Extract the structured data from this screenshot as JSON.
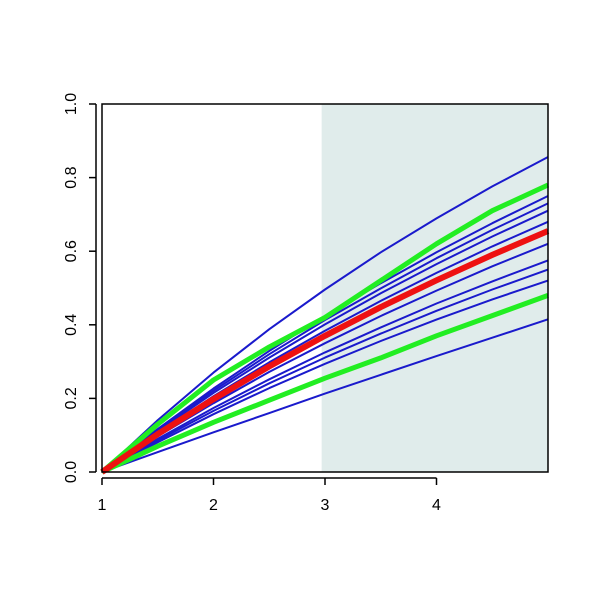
{
  "chart_data": {
    "type": "line",
    "x": [
      1,
      1.5,
      2,
      2.5,
      3,
      3.5,
      4,
      4.5,
      5
    ],
    "series": [
      {
        "color": "#1a1acc",
        "line_width": 2,
        "values": [
          0,
          0.141,
          0.27,
          0.388,
          0.496,
          0.597,
          0.689,
          0.776,
          0.856
        ]
      },
      {
        "color": "#1a1acc",
        "line_width": 2,
        "values": [
          0,
          0.117,
          0.227,
          0.329,
          0.424,
          0.513,
          0.597,
          0.676,
          0.75
        ]
      },
      {
        "color": "#1a1acc",
        "line_width": 2,
        "values": [
          0,
          0.114,
          0.221,
          0.32,
          0.413,
          0.499,
          0.581,
          0.658,
          0.73
        ]
      },
      {
        "color": "#1a1acc",
        "line_width": 2,
        "values": [
          0,
          0.111,
          0.215,
          0.311,
          0.401,
          0.486,
          0.565,
          0.64,
          0.71
        ]
      },
      {
        "color": "#1a1acc",
        "line_width": 2,
        "values": [
          0,
          0.106,
          0.206,
          0.298,
          0.384,
          0.465,
          0.541,
          0.613,
          0.68
        ]
      },
      {
        "color": "#1a1acc",
        "line_width": 2,
        "values": [
          0,
          0.097,
          0.187,
          0.272,
          0.35,
          0.424,
          0.493,
          0.559,
          0.62
        ]
      },
      {
        "color": "#1a1acc",
        "line_width": 2,
        "values": [
          0,
          0.09,
          0.174,
          0.252,
          0.325,
          0.393,
          0.458,
          0.518,
          0.575
        ]
      },
      {
        "color": "#1a1acc",
        "line_width": 2,
        "values": [
          0,
          0.086,
          0.166,
          0.241,
          0.311,
          0.376,
          0.438,
          0.496,
          0.55
        ]
      },
      {
        "color": "#1a1acc",
        "line_width": 2,
        "values": [
          0,
          0.081,
          0.157,
          0.228,
          0.294,
          0.356,
          0.414,
          0.469,
          0.52
        ]
      },
      {
        "color": "#1a1acc",
        "line_width": 2,
        "values": [
          0,
          0.054,
          0.108,
          0.16,
          0.213,
          0.264,
          0.315,
          0.365,
          0.415
        ]
      },
      {
        "color": "#22ee22",
        "line_width": 5,
        "values": [
          0,
          0.13,
          0.25,
          0.34,
          0.42,
          0.52,
          0.62,
          0.71,
          0.78
        ]
      },
      {
        "color": "#22ee22",
        "line_width": 5,
        "values": [
          0,
          0.07,
          0.135,
          0.195,
          0.255,
          0.31,
          0.37,
          0.425,
          0.48
        ]
      },
      {
        "color": "#ee1111",
        "line_width": 6,
        "values": [
          0,
          0.103,
          0.198,
          0.287,
          0.37,
          0.448,
          0.521,
          0.59,
          0.655
        ]
      }
    ],
    "shaded_region": {
      "x": [
        2.97,
        5
      ],
      "color": "#e0eceb"
    },
    "xlim": [
      1,
      5
    ],
    "ylim": [
      0,
      1
    ],
    "xticks": [
      1,
      2,
      3,
      4
    ],
    "yticks": [
      {
        "value": 0,
        "label": "0.0"
      },
      {
        "value": 0.2,
        "label": "0.2"
      },
      {
        "value": 0.4,
        "label": "0.4"
      },
      {
        "value": 0.6,
        "label": "0.6"
      },
      {
        "value": 0.8,
        "label": "0.8"
      },
      {
        "value": 1,
        "label": "1.0"
      }
    ]
  }
}
